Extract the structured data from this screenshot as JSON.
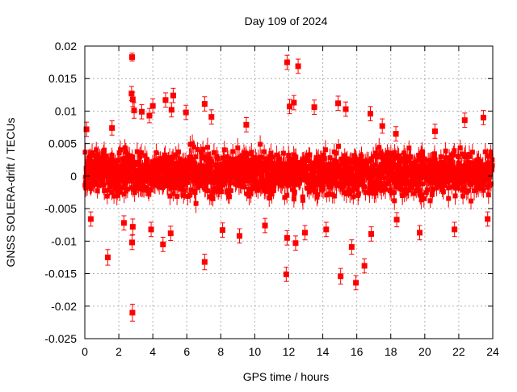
{
  "chart_data": {
    "type": "scatter",
    "title": "Day 109 of 2024",
    "xlabel": "GPS time / hours",
    "ylabel": "GNSS SOLERA-drift / TECUs",
    "xlim": [
      0,
      24
    ],
    "ylim": [
      -0.025,
      0.02
    ],
    "x_ticks": [
      0,
      2,
      4,
      6,
      8,
      10,
      12,
      14,
      16,
      18,
      20,
      22,
      24
    ],
    "y_ticks": [
      -0.025,
      -0.02,
      -0.015,
      -0.01,
      -0.005,
      0,
      0.005,
      0.01,
      0.015,
      0.02
    ],
    "x_tick_labels": [
      "0",
      "2",
      "4",
      "6",
      "8",
      "10",
      "12",
      "14",
      "16",
      "18",
      "20",
      "22",
      "24"
    ],
    "y_tick_labels": [
      "-0.025",
      "-0.02",
      "-0.015",
      "-0.01",
      "-0.005",
      "0",
      "0.005",
      "0.01",
      "0.015",
      "0.02"
    ],
    "grid": true,
    "series": [
      {
        "color": "#ff0000",
        "marker": "square",
        "error_bars": true,
        "bulk_band": {
          "x_range": [
            0,
            24
          ],
          "y_range": [
            -0.0045,
            0.0055
          ],
          "note_density": "dense"
        },
        "points": [
          {
            "x": 2.78,
            "y": 0.0183,
            "err": 0.0006
          },
          {
            "x": 2.8,
            "y": -0.021,
            "err": 0.0013
          },
          {
            "x": 2.78,
            "y": -0.0102,
            "err": 0.0011
          },
          {
            "x": 2.75,
            "y": 0.0127,
            "err": 0.0011
          },
          {
            "x": 2.82,
            "y": 0.0118,
            "err": 0.0011
          },
          {
            "x": 1.35,
            "y": -0.0125,
            "err": 0.0012
          },
          {
            "x": 2.82,
            "y": -0.0078,
            "err": 0.0012
          },
          {
            "x": 2.9,
            "y": 0.0101,
            "err": 0.0012
          },
          {
            "x": 3.35,
            "y": 0.0099,
            "err": 0.0011
          },
          {
            "x": 3.8,
            "y": 0.0093,
            "err": 0.0011
          },
          {
            "x": 4.0,
            "y": 0.0108,
            "err": 0.0011
          },
          {
            "x": 4.75,
            "y": 0.0117,
            "err": 0.0011
          },
          {
            "x": 5.1,
            "y": 0.0102,
            "err": 0.0011
          },
          {
            "x": 5.2,
            "y": 0.0124,
            "err": 0.0011
          },
          {
            "x": 5.95,
            "y": 0.0098,
            "err": 0.0011
          },
          {
            "x": 4.6,
            "y": -0.0105,
            "err": 0.0011
          },
          {
            "x": 5.05,
            "y": -0.0088,
            "err": 0.0011
          },
          {
            "x": 3.9,
            "y": -0.0082,
            "err": 0.0011
          },
          {
            "x": 2.3,
            "y": -0.0072,
            "err": 0.0011
          },
          {
            "x": 7.05,
            "y": -0.0132,
            "err": 0.0012
          },
          {
            "x": 7.05,
            "y": 0.0111,
            "err": 0.0011
          },
          {
            "x": 7.45,
            "y": 0.0091,
            "err": 0.0011
          },
          {
            "x": 8.1,
            "y": -0.0083,
            "err": 0.0011
          },
          {
            "x": 9.1,
            "y": -0.0092,
            "err": 0.0011
          },
          {
            "x": 10.6,
            "y": -0.0076,
            "err": 0.0011
          },
          {
            "x": 11.9,
            "y": 0.0175,
            "err": 0.0011
          },
          {
            "x": 12.55,
            "y": 0.0169,
            "err": 0.0011
          },
          {
            "x": 11.85,
            "y": -0.0151,
            "err": 0.0011
          },
          {
            "x": 11.9,
            "y": -0.0095,
            "err": 0.0011
          },
          {
            "x": 12.4,
            "y": -0.0103,
            "err": 0.0011
          },
          {
            "x": 12.3,
            "y": 0.0113,
            "err": 0.0011
          },
          {
            "x": 12.05,
            "y": 0.0107,
            "err": 0.0011
          },
          {
            "x": 12.95,
            "y": -0.0087,
            "err": 0.0011
          },
          {
            "x": 13.5,
            "y": 0.0106,
            "err": 0.0011
          },
          {
            "x": 14.2,
            "y": -0.0082,
            "err": 0.0011
          },
          {
            "x": 14.9,
            "y": 0.0112,
            "err": 0.0011
          },
          {
            "x": 15.35,
            "y": 0.0103,
            "err": 0.0011
          },
          {
            "x": 15.05,
            "y": -0.0154,
            "err": 0.0012
          },
          {
            "x": 15.95,
            "y": -0.0164,
            "err": 0.0011
          },
          {
            "x": 16.45,
            "y": -0.0138,
            "err": 0.0011
          },
          {
            "x": 15.7,
            "y": -0.0109,
            "err": 0.0011
          },
          {
            "x": 16.8,
            "y": 0.0096,
            "err": 0.0011
          },
          {
            "x": 16.85,
            "y": -0.0089,
            "err": 0.0011
          },
          {
            "x": 17.5,
            "y": 0.0077,
            "err": 0.0011
          },
          {
            "x": 18.3,
            "y": 0.0065,
            "err": 0.0011
          },
          {
            "x": 18.35,
            "y": -0.0067,
            "err": 0.0011
          },
          {
            "x": 19.7,
            "y": -0.0087,
            "err": 0.0011
          },
          {
            "x": 21.75,
            "y": -0.0082,
            "err": 0.0011
          },
          {
            "x": 22.35,
            "y": 0.0086,
            "err": 0.0011
          },
          {
            "x": 23.45,
            "y": 0.009,
            "err": 0.0011
          },
          {
            "x": 23.7,
            "y": -0.0066,
            "err": 0.0011
          },
          {
            "x": 1.6,
            "y": 0.0074,
            "err": 0.0011
          },
          {
            "x": 0.1,
            "y": 0.0072,
            "err": 0.0011
          },
          {
            "x": 0.35,
            "y": -0.0066,
            "err": 0.0011
          },
          {
            "x": 9.5,
            "y": 0.0079,
            "err": 0.0011
          },
          {
            "x": 20.6,
            "y": 0.0069,
            "err": 0.0011
          }
        ]
      }
    ]
  }
}
